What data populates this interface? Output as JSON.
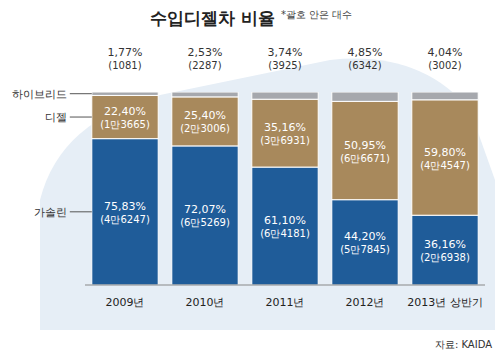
{
  "chart_data": {
    "type": "bar",
    "title": "수입디젤차 비율",
    "subtitle": "*괄호 안은 대수",
    "source": "자료: KAIDA",
    "stacked": true,
    "data_labels": true,
    "tick_labels": "x",
    "ylim": [
      0,
      100
    ],
    "categories": [
      "2009년",
      "2010년",
      "2011년",
      "2012년",
      "2013년 상반기"
    ],
    "series": [
      {
        "name": "가솔린",
        "color": "#1f5c99",
        "values": [
          75.83,
          72.07,
          61.1,
          44.2,
          36.16
        ],
        "value_labels": [
          "75,83%",
          "72,07%",
          "61,10%",
          "44,20%",
          "36,16%"
        ],
        "counts": [
          46247,
          65269,
          64181,
          57845,
          26938
        ],
        "count_labels": [
          "(4만6247)",
          "(6만5269)",
          "(6만4181)",
          "(5만7845)",
          "(2만6938)"
        ]
      },
      {
        "name": "디젤",
        "color": "#a8895c",
        "values": [
          22.4,
          25.4,
          35.16,
          50.95,
          59.8
        ],
        "value_labels": [
          "22,40%",
          "25,40%",
          "35,16%",
          "50,95%",
          "59,80%"
        ],
        "counts": [
          13665,
          23006,
          36931,
          66671,
          44547
        ],
        "count_labels": [
          "(1만3665)",
          "(2만3006)",
          "(3만6931)",
          "(6만6671)",
          "(4만4547)"
        ]
      },
      {
        "name": "하이브리드",
        "color": "#a6a8ad",
        "values": [
          1.77,
          2.53,
          3.74,
          4.85,
          4.04
        ],
        "value_labels": [
          "1,77%",
          "2,53%",
          "3,74%",
          "4,85%",
          "4,04%"
        ],
        "counts": [
          1081,
          2287,
          3925,
          6342,
          3002
        ],
        "count_labels": [
          "(1081)",
          "(2287)",
          "(3925)",
          "(6342)",
          "(3002)"
        ]
      }
    ]
  }
}
